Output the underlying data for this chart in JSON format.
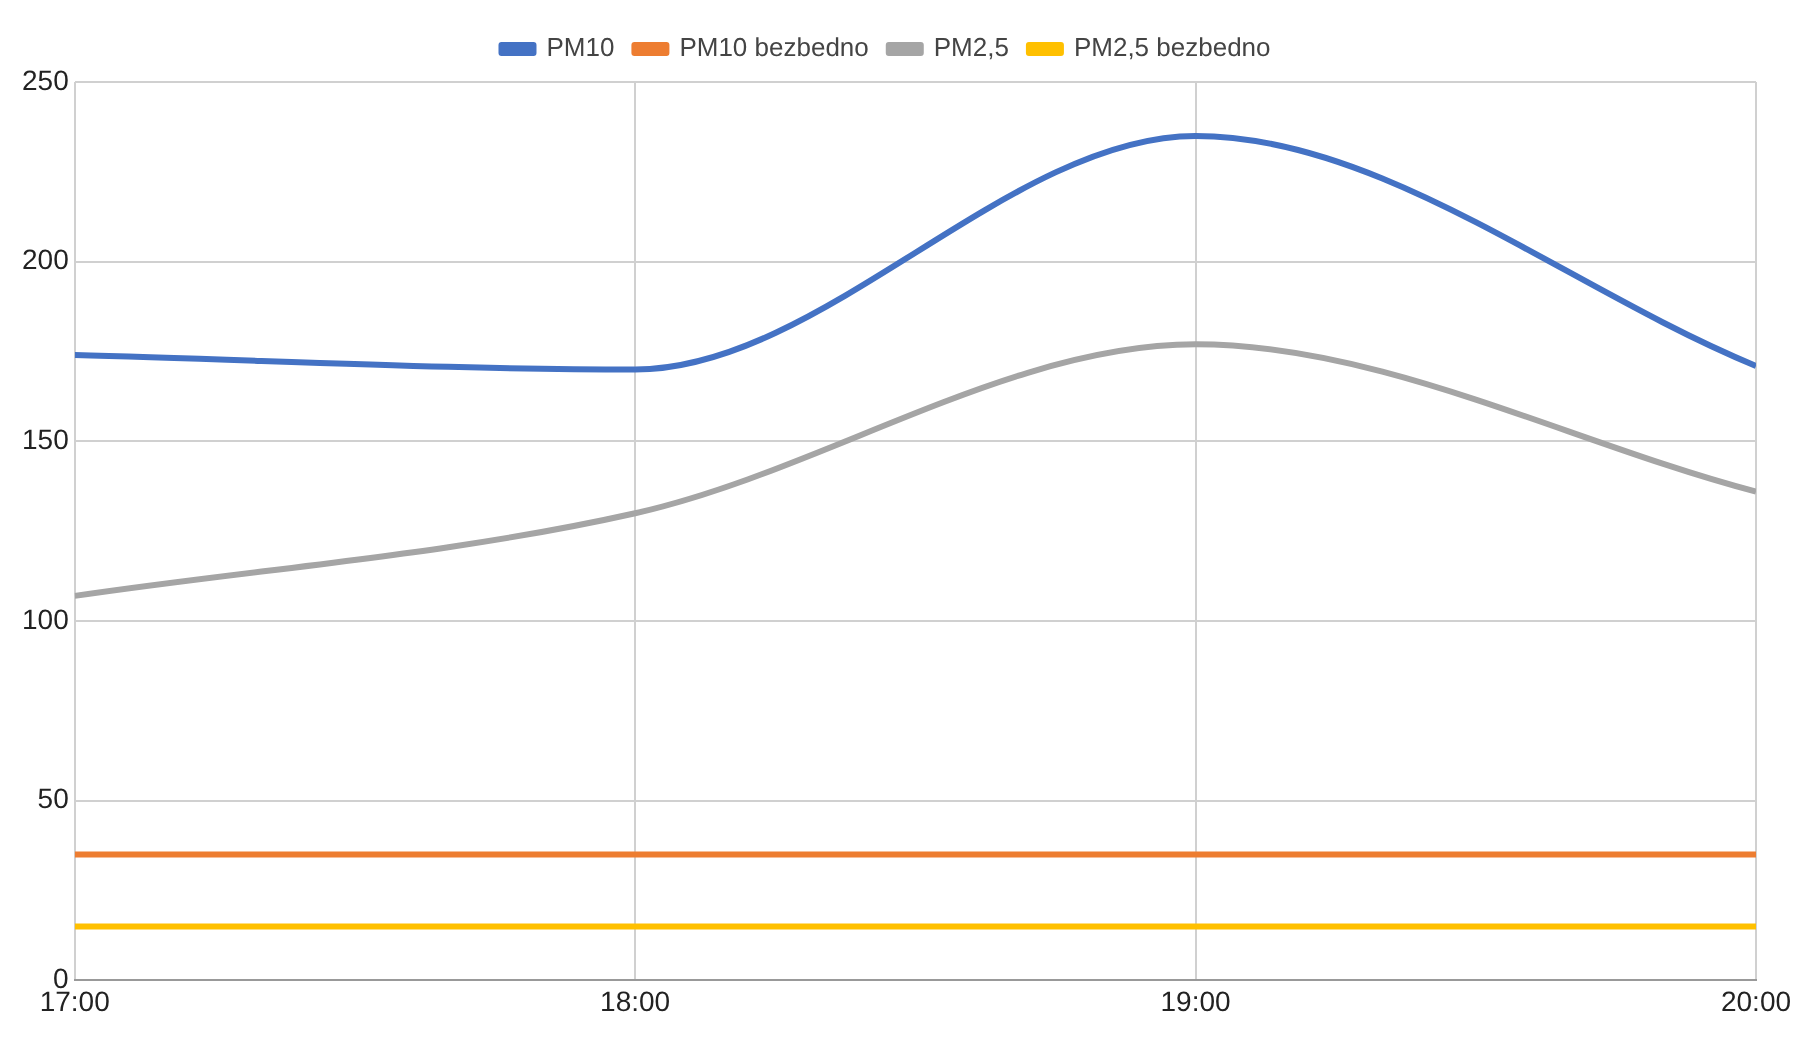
{
  "chart_data": {
    "type": "line",
    "x": [
      17,
      18,
      19,
      20
    ],
    "series": [
      {
        "name": "PM10",
        "color": "#4472c4",
        "values": [
          174,
          170,
          235,
          171
        ]
      },
      {
        "name": "PM10 bezbedno",
        "color": "#ed7d31",
        "values": [
          35,
          35,
          35,
          35
        ]
      },
      {
        "name": "PM2,5",
        "color": "#a5a5a5",
        "values": [
          107,
          130,
          177,
          136
        ]
      },
      {
        "name": "PM2,5 bezbedno",
        "color": "#ffc000",
        "values": [
          15,
          15,
          15,
          15
        ]
      }
    ],
    "xlim": [
      17,
      20
    ],
    "xticks": [
      {
        "value": 17,
        "label": "17:00"
      },
      {
        "value": 18,
        "label": "18:00"
      },
      {
        "value": 19,
        "label": "19:00"
      },
      {
        "value": 20,
        "label": "20:00"
      }
    ],
    "ylim": [
      0,
      250
    ],
    "yticks": [
      0,
      50,
      100,
      150,
      200,
      250
    ],
    "grid": true,
    "legend": "top",
    "marker": "none",
    "line_style": "solid"
  }
}
